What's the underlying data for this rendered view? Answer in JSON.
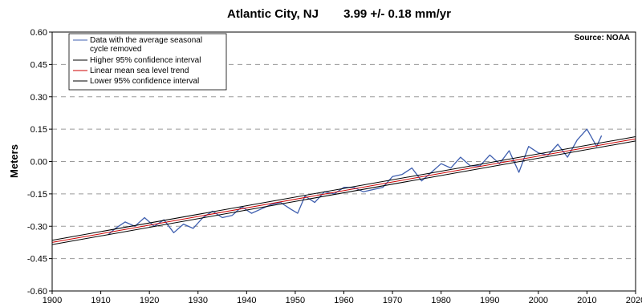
{
  "chart_data": {
    "type": "line",
    "title_location": "Atlantic City, NJ",
    "title_rate": "3.99 +/- 0.18 mm/yr",
    "source": "Source: NOAA",
    "xlabel": "",
    "ylabel": "Meters",
    "xlim": [
      1900,
      2020
    ],
    "ylim": [
      -0.6,
      0.6
    ],
    "x_ticks": [
      "1900",
      "1910",
      "1920",
      "1930",
      "1940",
      "1950",
      "1960",
      "1970",
      "1980",
      "1990",
      "2000",
      "2010",
      "2020"
    ],
    "y_ticks": [
      "0.60",
      "0.45",
      "0.30",
      "0.15",
      "0.00",
      "-0.15",
      "-0.30",
      "-0.45",
      "-0.60"
    ],
    "grid": "horizontal dashed",
    "legend_placement": "top-left",
    "legend": [
      {
        "label_line1": "Data with the average seasonal",
        "label_line2": "cycle removed",
        "color": "#3f5faf"
      },
      {
        "label_line1": "Higher 95% confidence interval",
        "color": "#000000"
      },
      {
        "label_line1": "Linear mean sea level trend",
        "color": "#cc0000"
      },
      {
        "label_line1": "Lower 95% confidence interval",
        "color": "#000000"
      }
    ],
    "series": [
      {
        "name": "Data with the average seasonal cycle removed",
        "color": "#3f5faf",
        "x": [
          1911.5,
          1913,
          1915,
          1917,
          1919,
          1921,
          1923,
          1925,
          1927,
          1929,
          1931,
          1933,
          1935,
          1937,
          1939,
          1941,
          1943,
          1945,
          1947,
          1949,
          1950.5,
          1952,
          1954,
          1956,
          1958,
          1960,
          1962,
          1964,
          1966,
          1968,
          1970,
          1972,
          1974,
          1976,
          1978,
          1980,
          1982,
          1984,
          1986,
          1988,
          1990,
          1992,
          1994,
          1996,
          1998,
          2000,
          2002,
          2004,
          2006,
          2008,
          2010,
          2012,
          2013
        ],
        "y": [
          -0.34,
          -0.31,
          -0.28,
          -0.3,
          -0.26,
          -0.3,
          -0.27,
          -0.33,
          -0.29,
          -0.31,
          -0.26,
          -0.23,
          -0.26,
          -0.25,
          -0.21,
          -0.24,
          -0.22,
          -0.2,
          -0.19,
          -0.22,
          -0.24,
          -0.16,
          -0.19,
          -0.14,
          -0.15,
          -0.12,
          -0.12,
          -0.14,
          -0.13,
          -0.12,
          -0.07,
          -0.06,
          -0.03,
          -0.09,
          -0.05,
          -0.01,
          -0.03,
          0.02,
          -0.02,
          -0.02,
          0.03,
          -0.01,
          0.05,
          -0.05,
          0.07,
          0.04,
          0.03,
          0.08,
          0.02,
          0.1,
          0.15,
          0.07,
          0.12
        ]
      },
      {
        "name": "Higher 95% confidence interval",
        "color": "#000000",
        "x": [
          1900,
          2020
        ],
        "y": [
          -0.365,
          0.115
        ]
      },
      {
        "name": "Linear mean sea level trend",
        "color": "#cc0000",
        "x": [
          1900,
          2020
        ],
        "y": [
          -0.375,
          0.105
        ]
      },
      {
        "name": "Lower 95% confidence interval",
        "color": "#000000",
        "x": [
          1900,
          2020
        ],
        "y": [
          -0.385,
          0.095
        ]
      }
    ]
  }
}
